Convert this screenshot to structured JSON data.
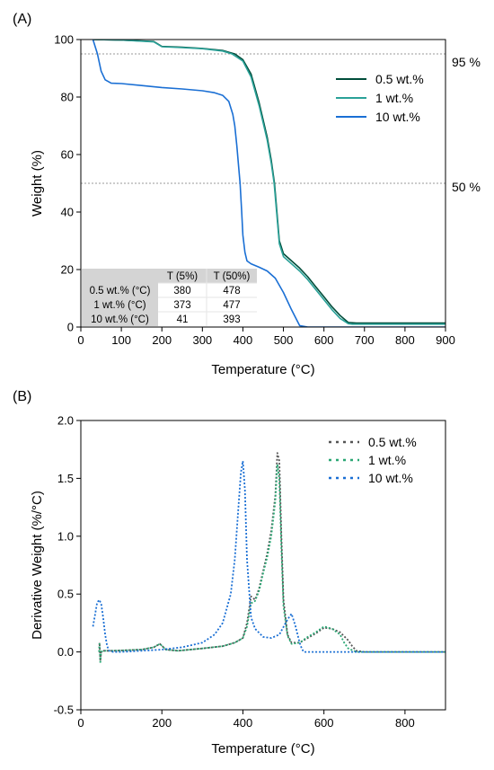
{
  "chart_data": [
    {
      "panel_label": "(A)",
      "type": "line",
      "xlabel": "Temperature (°C)",
      "ylabel": "Weight (%)",
      "xlim": [
        0,
        900
      ],
      "ylim": [
        0,
        100
      ],
      "xticks": [
        0,
        100,
        200,
        300,
        400,
        500,
        600,
        700,
        800,
        900
      ],
      "yticks": [
        0,
        20,
        40,
        60,
        80,
        100
      ],
      "reference_lines": [
        {
          "y": 95,
          "label": "95 %"
        },
        {
          "y": 50,
          "label": "50 %"
        }
      ],
      "legend_position": "top-right",
      "series": [
        {
          "name": "0.5 wt.%",
          "color": "#004d3a",
          "x": [
            30,
            100,
            180,
            200,
            250,
            300,
            350,
            380,
            400,
            420,
            440,
            460,
            470,
            478,
            490,
            500,
            520,
            540,
            560,
            580,
            600,
            620,
            640,
            660,
            680,
            700,
            800,
            900
          ],
          "y": [
            100,
            99.8,
            99.3,
            97.6,
            97.3,
            96.9,
            96.2,
            95,
            93,
            88,
            78,
            66,
            58,
            50,
            30,
            25.5,
            23,
            20.5,
            17.5,
            14,
            10.5,
            7,
            4,
            1.6,
            1.4,
            1.4,
            1.4,
            1.4
          ]
        },
        {
          "name": "1 wt.%",
          "color": "#2aa198",
          "x": [
            30,
            100,
            180,
            200,
            250,
            300,
            350,
            373,
            400,
            420,
            440,
            460,
            470,
            477,
            490,
            500,
            520,
            540,
            560,
            580,
            600,
            620,
            640,
            660,
            670,
            700,
            800,
            900
          ],
          "y": [
            100,
            99.8,
            99.2,
            97.5,
            97.2,
            96.8,
            96.0,
            95,
            92.5,
            87,
            77,
            65,
            57,
            50,
            29,
            24.5,
            22,
            19.5,
            16.5,
            13,
            9.5,
            6,
            3,
            1.2,
            1.0,
            1.0,
            1.0,
            1.0
          ]
        },
        {
          "name": "10 wt.%",
          "color": "#1a6fd4",
          "x": [
            30,
            41,
            50,
            60,
            75,
            100,
            150,
            200,
            250,
            300,
            330,
            350,
            365,
            375,
            380,
            385,
            390,
            393,
            397,
            400,
            405,
            410,
            420,
            440,
            460,
            480,
            500,
            520,
            540,
            560,
            600,
            900
          ],
          "y": [
            100,
            95,
            89,
            86,
            84.8,
            84.7,
            84,
            83.3,
            82.8,
            82.2,
            81.5,
            80.6,
            78.5,
            74,
            70,
            63,
            55,
            50,
            40,
            32,
            26,
            23,
            22,
            20.8,
            19.5,
            17,
            12,
            6,
            0.5,
            0,
            0,
            0
          ]
        }
      ],
      "table": {
        "headers": [
          "",
          "T (5%)",
          "T (50%)"
        ],
        "rows": [
          [
            "0.5 wt.% (°C)",
            "380",
            "478"
          ],
          [
            "1 wt.% (°C)",
            "373",
            "477"
          ],
          [
            "10 wt.% (°C)",
            "41",
            "393"
          ]
        ]
      }
    },
    {
      "panel_label": "(B)",
      "type": "line",
      "line_style": "dotted",
      "xlabel": "Temperature (°C)",
      "ylabel": "Derivative Weight (%/°C)",
      "xlim": [
        0,
        900
      ],
      "ylim": [
        -0.5,
        2.0
      ],
      "xticks": [
        0,
        200,
        400,
        600,
        800
      ],
      "yticks": [
        -0.5,
        0.0,
        0.5,
        1.0,
        1.5,
        2.0
      ],
      "legend_position": "top-right",
      "series": [
        {
          "name": "0.5 wt.%",
          "color": "#555555",
          "x": [
            45,
            46,
            48,
            50,
            55,
            80,
            150,
            180,
            195,
            210,
            240,
            300,
            350,
            380,
            400,
            410,
            420,
            430,
            440,
            450,
            460,
            470,
            480,
            485,
            490,
            495,
            500,
            510,
            520,
            540,
            560,
            580,
            600,
            620,
            640,
            660,
            670,
            680,
            700,
            800,
            900
          ],
          "y": [
            0,
            0.08,
            -0.08,
            0,
            0.01,
            0.01,
            0.02,
            0.04,
            0.07,
            0.02,
            0.01,
            0.03,
            0.05,
            0.08,
            0.12,
            0.25,
            0.48,
            0.45,
            0.55,
            0.7,
            0.85,
            1.05,
            1.35,
            1.72,
            1.65,
            1.0,
            0.45,
            0.15,
            0.08,
            0.08,
            0.12,
            0.16,
            0.21,
            0.2,
            0.17,
            0.1,
            0.05,
            0.01,
            0,
            0,
            0
          ]
        },
        {
          "name": "1 wt.%",
          "color": "#2aa774",
          "x": [
            45,
            46,
            48,
            50,
            55,
            80,
            150,
            180,
            195,
            210,
            240,
            300,
            350,
            380,
            400,
            410,
            420,
            430,
            440,
            450,
            460,
            470,
            480,
            485,
            490,
            495,
            500,
            510,
            520,
            540,
            560,
            580,
            600,
            620,
            640,
            650,
            660,
            680,
            700,
            800,
            900
          ],
          "y": [
            0,
            0.07,
            -0.1,
            0,
            0.01,
            0.01,
            0.02,
            0.04,
            0.07,
            0.02,
            0.01,
            0.03,
            0.05,
            0.08,
            0.12,
            0.22,
            0.42,
            0.44,
            0.53,
            0.68,
            0.82,
            1.0,
            1.3,
            1.62,
            1.5,
            0.9,
            0.4,
            0.14,
            0.07,
            0.08,
            0.13,
            0.17,
            0.22,
            0.2,
            0.15,
            0.08,
            0.03,
            0,
            0,
            0,
            0
          ]
        },
        {
          "name": "10 wt.%",
          "color": "#1a6fd4",
          "x": [
            30,
            35,
            40,
            45,
            50,
            55,
            60,
            65,
            70,
            80,
            100,
            150,
            200,
            250,
            300,
            330,
            350,
            370,
            380,
            390,
            395,
            400,
            405,
            410,
            420,
            430,
            450,
            470,
            490,
            510,
            520,
            530,
            540,
            545,
            550,
            560,
            600,
            900
          ],
          "y": [
            0.22,
            0.32,
            0.42,
            0.45,
            0.42,
            0.3,
            0.15,
            0.05,
            0.01,
            0,
            0,
            0.01,
            0.02,
            0.04,
            0.08,
            0.15,
            0.25,
            0.5,
            0.8,
            1.3,
            1.55,
            1.65,
            1.4,
            0.8,
            0.3,
            0.2,
            0.13,
            0.12,
            0.15,
            0.28,
            0.33,
            0.22,
            0.08,
            0.03,
            0,
            0,
            0,
            0
          ]
        }
      ]
    }
  ]
}
